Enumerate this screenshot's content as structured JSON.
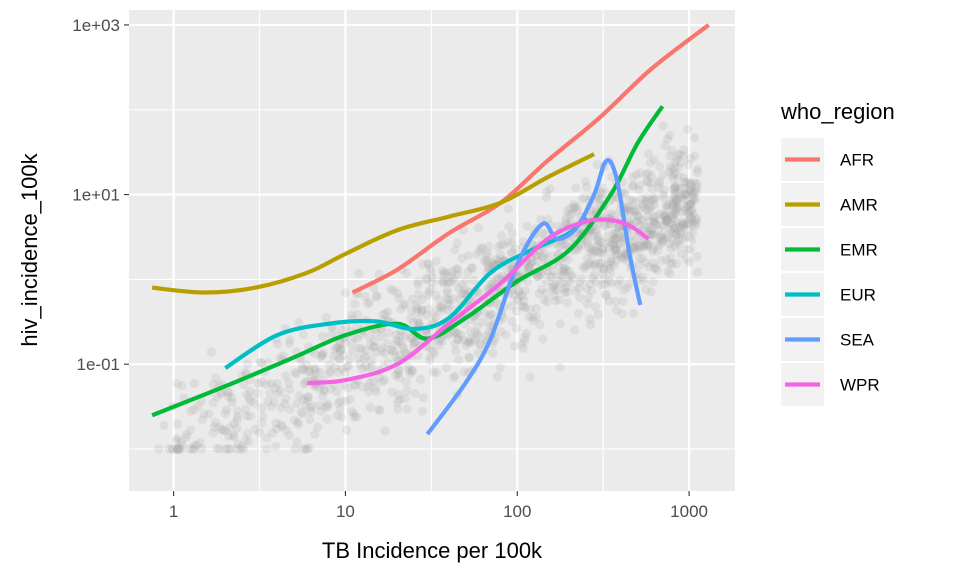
{
  "chart_data": {
    "type": "scatter",
    "xlabel": "TB Incidence per 100k",
    "ylabel": "hiv_incidence_100k",
    "x_scale": "log10",
    "y_scale": "log10",
    "xlim": [
      0.55,
      1850
    ],
    "ylim": [
      0.0032,
      1500
    ],
    "x_ticks": [
      1,
      10,
      100,
      1000
    ],
    "x_tick_labels": [
      "1",
      "10",
      "100",
      "1000"
    ],
    "y_ticks": [
      0.1,
      10,
      1000
    ],
    "y_tick_labels": [
      "1e-01",
      "1e+01",
      "1e+03"
    ],
    "grid": true,
    "legend_position": "right",
    "legend_title": "who_region",
    "points_color": "#9e9e9e",
    "series": [
      {
        "name": "AFR",
        "color": "#F8766D",
        "x": [
          11,
          20,
          40,
          80,
          150,
          300,
          600,
          1300
        ],
        "y": [
          0.7,
          1.3,
          3.5,
          8,
          25,
          80,
          300,
          1000
        ]
      },
      {
        "name": "AMR",
        "color": "#B79F00",
        "x": [
          0.75,
          1.5,
          3,
          6,
          10,
          20,
          40,
          80,
          150,
          280
        ],
        "y": [
          0.8,
          0.7,
          0.8,
          1.2,
          2,
          3.8,
          5.5,
          8,
          16,
          30
        ]
      },
      {
        "name": "EMR",
        "color": "#00BA38",
        "x": [
          0.75,
          2,
          5,
          10,
          20,
          30,
          50,
          100,
          200,
          350,
          500,
          700
        ],
        "y": [
          0.025,
          0.055,
          0.12,
          0.22,
          0.3,
          0.2,
          0.35,
          0.95,
          2.2,
          10,
          40,
          110
        ]
      },
      {
        "name": "EUR",
        "color": "#00BFC4",
        "x": [
          2,
          4,
          8,
          15,
          25,
          40,
          70,
          120,
          200,
          250
        ],
        "y": [
          0.09,
          0.22,
          0.3,
          0.32,
          0.26,
          0.35,
          1.2,
          2.2,
          3.5,
          5.5
        ]
      },
      {
        "name": "SEA",
        "color": "#619CFF",
        "x": [
          30,
          50,
          70,
          100,
          140,
          170,
          220,
          280,
          330,
          380,
          450,
          520
        ],
        "y": [
          0.015,
          0.06,
          0.2,
          1.5,
          4.5,
          3,
          4,
          10,
          25,
          15,
          2,
          0.5
        ]
      },
      {
        "name": "WPR",
        "color": "#F564E3",
        "x": [
          6,
          10,
          20,
          40,
          80,
          150,
          250,
          350,
          450,
          580
        ],
        "y": [
          0.06,
          0.065,
          0.1,
          0.3,
          0.9,
          3,
          4.8,
          5,
          4.3,
          3
        ]
      }
    ]
  }
}
